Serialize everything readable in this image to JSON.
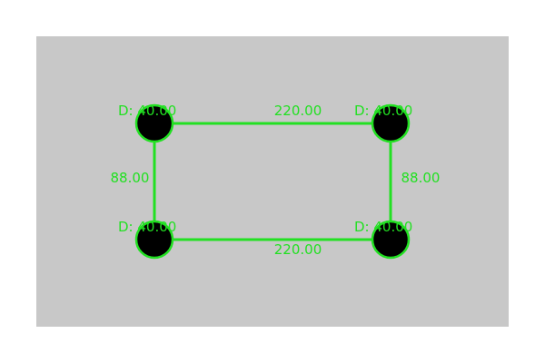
{
  "colors": {
    "page_background": "#ffffff",
    "panel_background": "#c8c8c8",
    "annotation": "#22e022",
    "hole_fill": "#000000"
  },
  "holes": [
    {
      "name": "top-left",
      "diameter_label": "D: 40.00"
    },
    {
      "name": "top-right",
      "diameter_label": "D: 40.00"
    },
    {
      "name": "bottom-left",
      "diameter_label": "D: 40.00"
    },
    {
      "name": "bottom-right",
      "diameter_label": "D: 40.00"
    }
  ],
  "dimensions": {
    "top": "220.00",
    "bottom": "220.00",
    "left": "88.00",
    "right": "88.00"
  }
}
